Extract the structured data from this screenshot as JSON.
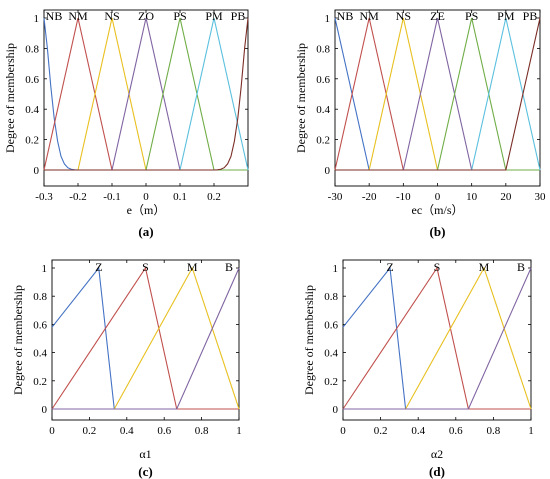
{
  "chart_data": [
    {
      "type": "line",
      "caption": "(a)",
      "xlabel": "e（m）",
      "ylabel": "Degree of membership",
      "xlim": [
        -0.3,
        0.3
      ],
      "ylim": [
        0,
        1
      ],
      "xticks": [
        -0.3,
        -0.2,
        -0.1,
        0,
        0.1,
        0.2
      ],
      "xtick_labels": [
        "-0.3",
        "-0.2",
        "-0.1",
        "0",
        "0.1",
        "0.2"
      ],
      "yticks": [
        0,
        0.2,
        0.4,
        0.6,
        0.8,
        1
      ],
      "ytick_labels": [
        "0",
        "0.2",
        "0.4",
        "0.6",
        "0.8",
        "1"
      ],
      "series": [
        {
          "name": "NB",
          "color": "#4472c4",
          "x": [
            -0.3,
            -0.29,
            -0.28,
            -0.27,
            -0.26,
            -0.25,
            -0.24,
            -0.23,
            -0.22,
            -0.21,
            -0.2,
            0.3
          ],
          "y": [
            1,
            0.8,
            0.55,
            0.34,
            0.19,
            0.09,
            0.04,
            0.015,
            0.005,
            0.001,
            0,
            0
          ]
        },
        {
          "name": "NM",
          "color": "#c0504d",
          "x": [
            -0.3,
            -0.2,
            -0.1,
            0.3
          ],
          "y": [
            0,
            1,
            0,
            0
          ]
        },
        {
          "name": "NS",
          "color": "#e8c020",
          "x": [
            -0.3,
            -0.2,
            -0.1,
            0,
            0.3
          ],
          "y": [
            0,
            0,
            1,
            0,
            0
          ]
        },
        {
          "name": "ZO",
          "color": "#8064a2",
          "x": [
            -0.3,
            -0.1,
            0,
            0.1,
            0.3
          ],
          "y": [
            0,
            0,
            1,
            0,
            0
          ]
        },
        {
          "name": "PS",
          "color": "#70ad47",
          "x": [
            -0.3,
            0,
            0.1,
            0.2,
            0.3
          ],
          "y": [
            0,
            0,
            1,
            0,
            0
          ]
        },
        {
          "name": "PM",
          "color": "#5bc0de",
          "x": [
            -0.3,
            0.1,
            0.2,
            0.3
          ],
          "y": [
            0,
            0,
            1,
            0
          ]
        },
        {
          "name": "PB",
          "color": "#7b2d26",
          "x": [
            -0.3,
            0.2,
            0.21,
            0.22,
            0.23,
            0.24,
            0.25,
            0.26,
            0.27,
            0.28,
            0.29,
            0.3
          ],
          "y": [
            0,
            0,
            0.001,
            0.005,
            0.015,
            0.04,
            0.09,
            0.19,
            0.34,
            0.55,
            0.8,
            1
          ]
        }
      ]
    },
    {
      "type": "line",
      "caption": "(b)",
      "xlabel": "ec（m/s）",
      "ylabel": "Degree of membership",
      "xlim": [
        -30,
        30
      ],
      "ylim": [
        0,
        1
      ],
      "xticks": [
        -30,
        -20,
        -10,
        0,
        10,
        20,
        30
      ],
      "xtick_labels": [
        "-30",
        "-20",
        "-10",
        "0",
        "10",
        "20",
        "30"
      ],
      "yticks": [
        0,
        0.2,
        0.4,
        0.6,
        0.8,
        1
      ],
      "ytick_labels": [
        "0",
        "0.2",
        "0.4",
        "0.6",
        "0.8",
        "1"
      ],
      "series": [
        {
          "name": "NB",
          "color": "#4472c4",
          "x": [
            -30,
            -20,
            30
          ],
          "y": [
            1,
            0,
            0
          ]
        },
        {
          "name": "NM",
          "color": "#c0504d",
          "x": [
            -30,
            -20,
            -10,
            30
          ],
          "y": [
            0,
            1,
            0,
            0
          ]
        },
        {
          "name": "NS",
          "color": "#e8c020",
          "x": [
            -30,
            -20,
            -10,
            0,
            30
          ],
          "y": [
            0,
            0,
            1,
            0,
            0
          ]
        },
        {
          "name": "ZE",
          "color": "#8064a2",
          "x": [
            -30,
            -10,
            0,
            10,
            30
          ],
          "y": [
            0,
            0,
            1,
            0,
            0
          ]
        },
        {
          "name": "PS",
          "color": "#70ad47",
          "x": [
            -30,
            0,
            10,
            20,
            30
          ],
          "y": [
            0,
            0,
            1,
            0,
            0
          ]
        },
        {
          "name": "PM",
          "color": "#5bc0de",
          "x": [
            -30,
            10,
            20,
            30
          ],
          "y": [
            0,
            0,
            1,
            0
          ]
        },
        {
          "name": "PB",
          "color": "#7b2d26",
          "x": [
            -30,
            20,
            30
          ],
          "y": [
            0,
            0,
            1
          ]
        }
      ]
    },
    {
      "type": "line",
      "caption": "(c)",
      "xlabel": "α1",
      "ylabel": "Degree of membership",
      "xlim": [
        0,
        1
      ],
      "ylim": [
        0,
        1
      ],
      "xticks": [
        0,
        0.2,
        0.4,
        0.6,
        0.8,
        1
      ],
      "xtick_labels": [
        "0",
        "0.2",
        "0.4",
        "0.6",
        "0.8",
        "1"
      ],
      "yticks": [
        0,
        0.2,
        0.4,
        0.6,
        0.8,
        1
      ],
      "ytick_labels": [
        "0",
        "0.2",
        "0.4",
        "0.6",
        "0.8",
        "1"
      ],
      "series": [
        {
          "name": "Z",
          "color": "#4472c4",
          "x": [
            0,
            0.25,
            0.333,
            1
          ],
          "y": [
            0.58,
            1,
            0,
            0
          ]
        },
        {
          "name": "S",
          "color": "#c0504d",
          "x": [
            0,
            0.5,
            0.667,
            1
          ],
          "y": [
            0,
            1,
            0,
            0
          ]
        },
        {
          "name": "M",
          "color": "#e8c020",
          "x": [
            0,
            0.333,
            0.75,
            1
          ],
          "y": [
            0,
            0,
            1,
            0
          ]
        },
        {
          "name": "B",
          "color": "#8064a2",
          "x": [
            0,
            0.667,
            1
          ],
          "y": [
            0,
            0,
            1
          ]
        }
      ]
    },
    {
      "type": "line",
      "caption": "(d)",
      "xlabel": "α2",
      "ylabel": "Degree of membership",
      "xlim": [
        0,
        1
      ],
      "ylim": [
        0,
        1
      ],
      "xticks": [
        0,
        0.2,
        0.4,
        0.6,
        0.8,
        1
      ],
      "xtick_labels": [
        "0",
        "0.2",
        "0.4",
        "0.6",
        "0.8",
        "1"
      ],
      "yticks": [
        0,
        0.2,
        0.4,
        0.6,
        0.8,
        1
      ],
      "ytick_labels": [
        "0",
        "0.2",
        "0.4",
        "0.6",
        "0.8",
        "1"
      ],
      "series": [
        {
          "name": "Z",
          "color": "#4472c4",
          "x": [
            0,
            0.25,
            0.333,
            1
          ],
          "y": [
            0.58,
            1,
            0,
            0
          ]
        },
        {
          "name": "S",
          "color": "#c0504d",
          "x": [
            0,
            0.5,
            0.667,
            1
          ],
          "y": [
            0,
            1,
            0,
            0
          ]
        },
        {
          "name": "M",
          "color": "#e8c020",
          "x": [
            0,
            0.333,
            0.75,
            1
          ],
          "y": [
            0,
            0,
            1,
            0
          ]
        },
        {
          "name": "B",
          "color": "#8064a2",
          "x": [
            0,
            0.667,
            1
          ],
          "y": [
            0,
            0,
            1
          ]
        }
      ]
    }
  ]
}
